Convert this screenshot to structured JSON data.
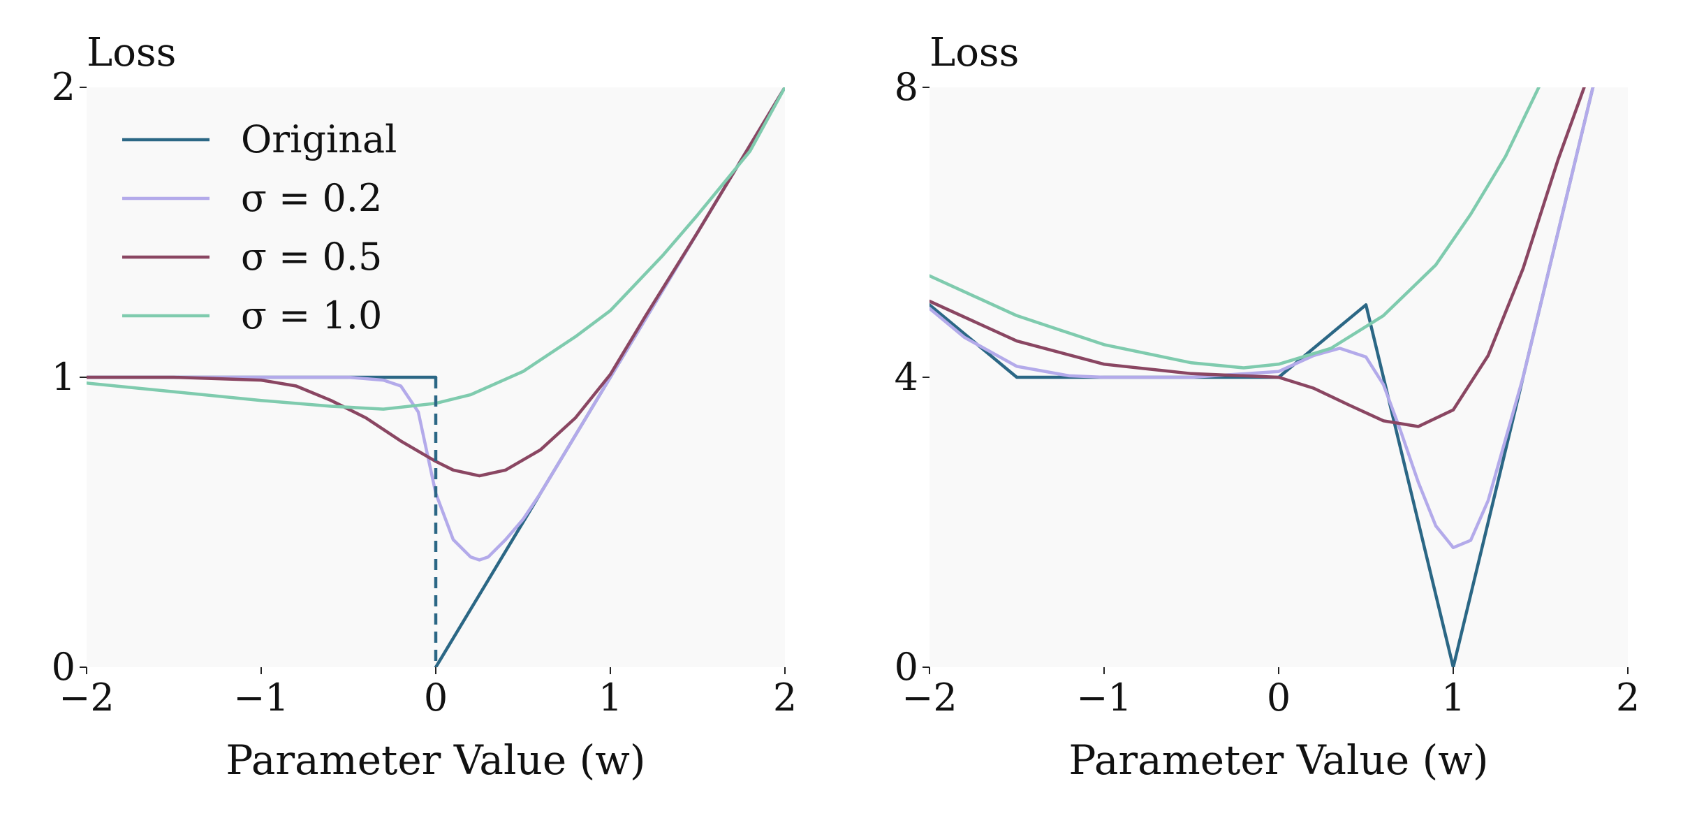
{
  "colors": {
    "original": "#2b6785",
    "sigma_0_2": "#b3aaea",
    "sigma_0_5": "#8a4662",
    "sigma_1_0": "#7fcbae",
    "panel_background": "#f9f9f9"
  },
  "legend": {
    "placement": "top-left",
    "entries": [
      {
        "key": "original",
        "label": "Original"
      },
      {
        "key": "sigma_0_2",
        "label": "σ = 0.2"
      },
      {
        "key": "sigma_0_5",
        "label": "σ = 0.5"
      },
      {
        "key": "sigma_1_0",
        "label": "σ = 1.0"
      }
    ]
  },
  "chart_data": [
    {
      "type": "line",
      "title": "",
      "xlabel": "Parameter Value (w)",
      "ylabel": "Loss",
      "xlim": [
        -2,
        2
      ],
      "ylim": [
        0,
        2
      ],
      "xticks": [
        -2,
        -1,
        0,
        1,
        2
      ],
      "xtick_labels": [
        "−2",
        "−1",
        "0",
        "1",
        "2"
      ],
      "yticks": [
        0,
        1,
        2
      ],
      "ytick_labels": [
        "0",
        "1",
        "2"
      ],
      "grid": false,
      "discontinuity": {
        "x": 0,
        "y_from": 1,
        "y_to": 0,
        "style": "dashed"
      },
      "series": [
        {
          "key": "original",
          "name": "Original",
          "segments": [
            {
              "x": [
                -2,
                0
              ],
              "y": [
                1,
                1
              ]
            },
            {
              "x": [
                0,
                2
              ],
              "y": [
                0,
                2
              ]
            }
          ]
        },
        {
          "key": "sigma_0_2",
          "name": "σ = 0.2",
          "x": [
            -2,
            -1.5,
            -1,
            -0.5,
            -0.3,
            -0.2,
            -0.1,
            0,
            0.1,
            0.2,
            0.25,
            0.3,
            0.4,
            0.5,
            0.6,
            0.8,
            1,
            1.5,
            2
          ],
          "y": [
            1,
            1,
            1,
            1,
            0.99,
            0.97,
            0.88,
            0.6,
            0.44,
            0.38,
            0.37,
            0.38,
            0.44,
            0.51,
            0.6,
            0.8,
            1.0,
            1.5,
            2
          ]
        },
        {
          "key": "sigma_0_5",
          "name": "σ = 0.5",
          "x": [
            -2,
            -1.5,
            -1,
            -0.8,
            -0.6,
            -0.4,
            -0.2,
            0,
            0.1,
            0.25,
            0.4,
            0.6,
            0.8,
            1,
            1.2,
            1.5,
            2
          ],
          "y": [
            1.0,
            1.0,
            0.99,
            0.97,
            0.92,
            0.86,
            0.78,
            0.71,
            0.68,
            0.66,
            0.68,
            0.75,
            0.86,
            1.01,
            1.21,
            1.5,
            2.0
          ]
        },
        {
          "key": "sigma_1_0",
          "name": "σ = 1.0",
          "x": [
            -2,
            -1.5,
            -1,
            -0.6,
            -0.3,
            0,
            0.2,
            0.5,
            0.8,
            1,
            1.3,
            1.5,
            1.8,
            2
          ],
          "y": [
            0.98,
            0.95,
            0.92,
            0.9,
            0.89,
            0.91,
            0.94,
            1.02,
            1.14,
            1.23,
            1.42,
            1.56,
            1.78,
            2.0
          ]
        }
      ]
    },
    {
      "type": "line",
      "title": "",
      "xlabel": "Parameter Value (w)",
      "ylabel": "Loss",
      "xlim": [
        -2,
        2
      ],
      "ylim": [
        0,
        8
      ],
      "xticks": [
        -2,
        -1,
        0,
        1,
        2
      ],
      "xtick_labels": [
        "−2",
        "−1",
        "0",
        "1",
        "2"
      ],
      "yticks": [
        0,
        4,
        8
      ],
      "ytick_labels": [
        "0",
        "4",
        "8"
      ],
      "grid": false,
      "series": [
        {
          "key": "original",
          "name": "Original",
          "x": [
            -2,
            -1.5,
            0,
            0.5,
            1,
            1.8
          ],
          "y": [
            5,
            4,
            4,
            5,
            0,
            8
          ]
        },
        {
          "key": "sigma_0_2",
          "name": "σ = 0.2",
          "x": [
            -2,
            -1.8,
            -1.5,
            -1.2,
            -1,
            -0.5,
            0,
            0.2,
            0.35,
            0.5,
            0.6,
            0.7,
            0.8,
            0.9,
            1,
            1.1,
            1.2,
            1.4,
            1.6,
            1.8
          ],
          "y": [
            4.95,
            4.55,
            4.15,
            4.02,
            4.0,
            4.0,
            4.08,
            4.3,
            4.4,
            4.28,
            3.9,
            3.25,
            2.55,
            1.95,
            1.65,
            1.75,
            2.3,
            4.0,
            6.0,
            8.0
          ]
        },
        {
          "key": "sigma_0_5",
          "name": "σ = 0.5",
          "x": [
            -2,
            -1.5,
            -1,
            -0.5,
            0,
            0.2,
            0.4,
            0.6,
            0.8,
            1,
            1.2,
            1.4,
            1.6,
            1.75
          ],
          "y": [
            5.05,
            4.5,
            4.18,
            4.05,
            4.0,
            3.85,
            3.62,
            3.4,
            3.32,
            3.55,
            4.3,
            5.5,
            7.0,
            8.0
          ]
        },
        {
          "key": "sigma_1_0",
          "name": "σ = 1.0",
          "x": [
            -2,
            -1.5,
            -1,
            -0.5,
            -0.2,
            0,
            0.3,
            0.6,
            0.9,
            1.1,
            1.3,
            1.5
          ],
          "y": [
            5.4,
            4.85,
            4.45,
            4.2,
            4.13,
            4.18,
            4.4,
            4.85,
            5.55,
            6.25,
            7.05,
            8.05
          ]
        }
      ]
    }
  ]
}
